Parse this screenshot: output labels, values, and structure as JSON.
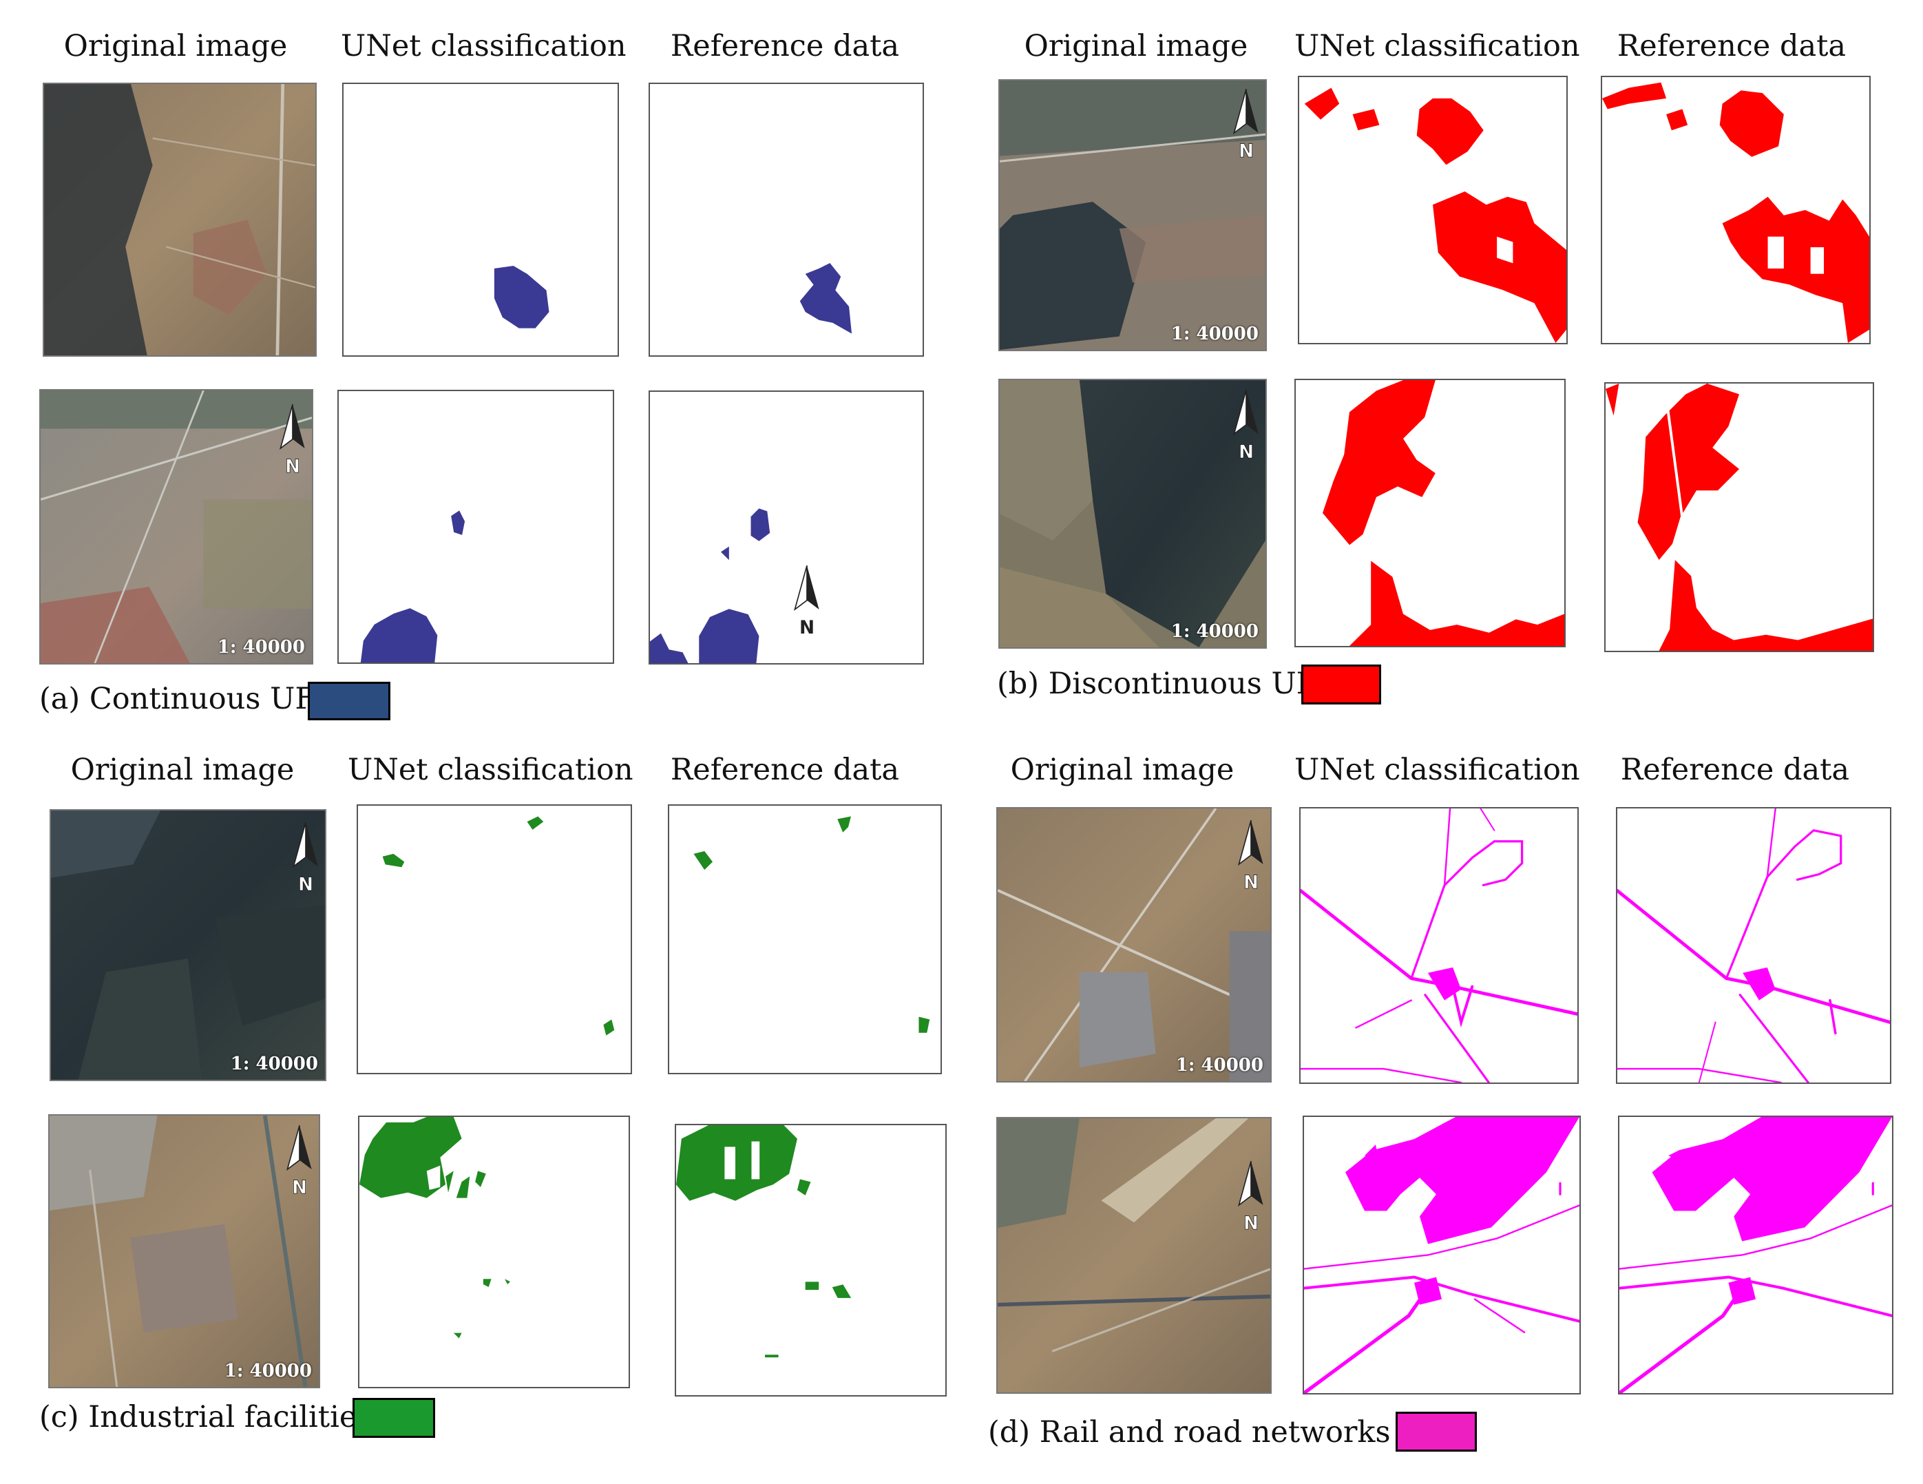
{
  "column_headers": {
    "original": "Original  image",
    "unet": "UNet classification",
    "reference": "Reference data"
  },
  "scale_label": "1: 40000",
  "north_label": "N",
  "panels": {
    "a": {
      "caption": "(a) Continuous UF",
      "color": "#2b4c7e",
      "mask_color": "#3a3a94"
    },
    "b": {
      "caption": "(b) Discontinuous UF",
      "color": "#ff0000",
      "mask_color": "#ff0000"
    },
    "c": {
      "caption": "(c) Industrial facilities",
      "color": "#1a9a2e",
      "mask_color": "#1f8a1f"
    },
    "d": {
      "caption": "(d) Rail and road networks",
      "color": "#ee1fc1",
      "mask_color": "#ff00ff"
    }
  }
}
